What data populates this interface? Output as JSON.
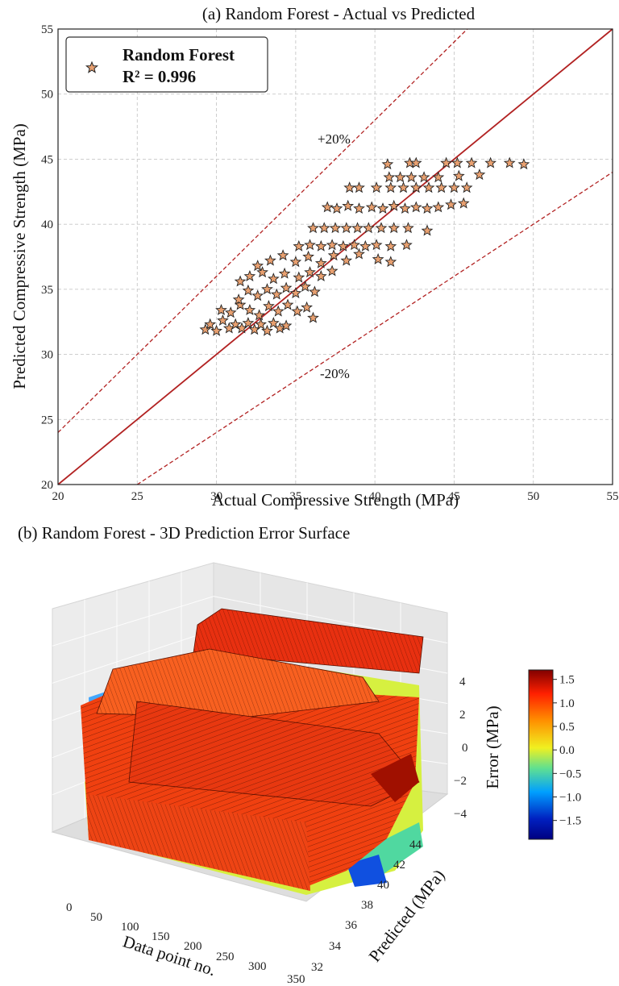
{
  "chart_data": [
    {
      "type": "scatter",
      "title": "(a) Random Forest - Actual vs Predicted",
      "xlabel": "Actual Compressive Strength (MPa)",
      "ylabel": "Predicted Compressive Strength (MPa)",
      "xlim": [
        20,
        55
      ],
      "ylim": [
        20,
        55
      ],
      "xticks": [
        "20",
        "25",
        "30",
        "35",
        "40",
        "45",
        "50",
        "55"
      ],
      "yticks": [
        "20",
        "25",
        "30",
        "35",
        "40",
        "45",
        "50",
        "55"
      ],
      "grid": true,
      "legend": {
        "placement": "top-left",
        "series_name": "Random Forest",
        "metric": "R² = 0.996"
      },
      "annotations": [
        "+20%",
        "-20%"
      ],
      "reference_lines": [
        "y = x",
        "y = 1.2x",
        "y = 0.8x"
      ],
      "marker": "star",
      "marker_color": "#e8a070",
      "line_color": "#b22222",
      "series": [
        {
          "name": "Random Forest",
          "points": [
            [
              29.3,
              31.9
            ],
            [
              29.6,
              32.3
            ],
            [
              30.0,
              31.8
            ],
            [
              30.4,
              32.6
            ],
            [
              30.8,
              32.0
            ],
            [
              31.2,
              32.3
            ],
            [
              31.6,
              32.0
            ],
            [
              32.0,
              32.4
            ],
            [
              32.4,
              31.9
            ],
            [
              32.8,
              32.3
            ],
            [
              33.2,
              31.8
            ],
            [
              33.6,
              32.4
            ],
            [
              34.0,
              32.0
            ],
            [
              34.4,
              32.2
            ],
            [
              30.3,
              33.4
            ],
            [
              30.9,
              33.2
            ],
            [
              31.5,
              33.8
            ],
            [
              32.1,
              33.4
            ],
            [
              32.7,
              33.0
            ],
            [
              33.3,
              33.7
            ],
            [
              33.9,
              33.3
            ],
            [
              34.5,
              33.8
            ],
            [
              35.1,
              33.3
            ],
            [
              35.7,
              33.6
            ],
            [
              36.1,
              32.8
            ],
            [
              31.4,
              34.2
            ],
            [
              32.0,
              34.9
            ],
            [
              32.6,
              34.5
            ],
            [
              33.2,
              35.0
            ],
            [
              33.8,
              34.6
            ],
            [
              34.4,
              35.1
            ],
            [
              35.0,
              34.7
            ],
            [
              35.6,
              35.2
            ],
            [
              36.2,
              34.8
            ],
            [
              31.5,
              35.6
            ],
            [
              32.1,
              36.0
            ],
            [
              32.9,
              36.3
            ],
            [
              33.6,
              35.8
            ],
            [
              34.3,
              36.2
            ],
            [
              35.2,
              35.9
            ],
            [
              35.9,
              36.3
            ],
            [
              36.6,
              36.0
            ],
            [
              37.3,
              36.4
            ],
            [
              32.6,
              36.8
            ],
            [
              33.4,
              37.2
            ],
            [
              34.2,
              37.6
            ],
            [
              35.0,
              37.1
            ],
            [
              35.8,
              37.5
            ],
            [
              36.6,
              37.0
            ],
            [
              37.4,
              37.6
            ],
            [
              38.2,
              37.2
            ],
            [
              39.0,
              37.7
            ],
            [
              40.2,
              37.3
            ],
            [
              41.0,
              37.1
            ],
            [
              35.2,
              38.3
            ],
            [
              35.9,
              38.4
            ],
            [
              36.6,
              38.3
            ],
            [
              37.3,
              38.4
            ],
            [
              38.0,
              38.3
            ],
            [
              38.7,
              38.4
            ],
            [
              39.4,
              38.3
            ],
            [
              40.1,
              38.4
            ],
            [
              41.0,
              38.3
            ],
            [
              42.0,
              38.4
            ],
            [
              36.1,
              39.7
            ],
            [
              36.8,
              39.7
            ],
            [
              37.5,
              39.7
            ],
            [
              38.2,
              39.7
            ],
            [
              38.9,
              39.7
            ],
            [
              39.6,
              39.7
            ],
            [
              40.4,
              39.7
            ],
            [
              41.2,
              39.7
            ],
            [
              42.1,
              39.7
            ],
            [
              43.3,
              39.5
            ],
            [
              37.0,
              41.3
            ],
            [
              37.6,
              41.2
            ],
            [
              38.3,
              41.4
            ],
            [
              39.0,
              41.2
            ],
            [
              39.8,
              41.3
            ],
            [
              40.5,
              41.2
            ],
            [
              41.2,
              41.4
            ],
            [
              41.9,
              41.2
            ],
            [
              42.6,
              41.3
            ],
            [
              43.3,
              41.2
            ],
            [
              44.0,
              41.3
            ],
            [
              44.8,
              41.5
            ],
            [
              45.6,
              41.6
            ],
            [
              38.4,
              42.8
            ],
            [
              39.0,
              42.8
            ],
            [
              40.1,
              42.8
            ],
            [
              41.0,
              42.8
            ],
            [
              41.8,
              42.8
            ],
            [
              42.6,
              42.8
            ],
            [
              43.4,
              42.8
            ],
            [
              44.2,
              42.8
            ],
            [
              45.0,
              42.8
            ],
            [
              45.8,
              42.8
            ],
            [
              40.9,
              43.6
            ],
            [
              41.6,
              43.6
            ],
            [
              42.3,
              43.6
            ],
            [
              43.1,
              43.6
            ],
            [
              44.0,
              43.6
            ],
            [
              45.3,
              43.7
            ],
            [
              46.6,
              43.8
            ],
            [
              40.8,
              44.6
            ],
            [
              42.2,
              44.7
            ],
            [
              42.6,
              44.7
            ],
            [
              44.5,
              44.7
            ],
            [
              45.2,
              44.7
            ],
            [
              46.1,
              44.7
            ],
            [
              47.3,
              44.7
            ],
            [
              48.5,
              44.7
            ],
            [
              49.4,
              44.6
            ]
          ]
        }
      ]
    },
    {
      "type": "surface",
      "title": "(b) Random Forest - 3D Prediction Error Surface",
      "xlabel": "Data point no.",
      "ylabel": "Predicted (MPa)",
      "zlabel": "Error (MPa)",
      "xticks": [
        "0",
        "50",
        "100",
        "150",
        "200",
        "250",
        "300",
        "350"
      ],
      "yticks": [
        "32",
        "34",
        "36",
        "38",
        "40",
        "42",
        "44"
      ],
      "zticks": [
        "4",
        "2",
        "0",
        "−2",
        "−4"
      ],
      "colorbar": {
        "ticks": [
          "1.5",
          "1.0",
          "0.5",
          "0.0",
          "−0.5",
          "−1.0",
          "−1.5"
        ],
        "range": [
          -1.9,
          1.7
        ],
        "colors": [
          "#800000",
          "#ff2000",
          "#ff9000",
          "#f0f020",
          "#60e090",
          "#00a0ff",
          "#0020c0",
          "#000080"
        ]
      }
    }
  ]
}
